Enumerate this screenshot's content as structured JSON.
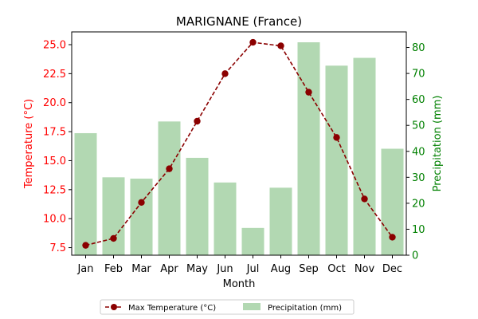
{
  "colors": {
    "temperature": "#8b0000",
    "left_axis": "#ff0000",
    "precipitation_bar": "#b2d8b2",
    "right_axis": "#008000"
  },
  "chart_data": {
    "type": "bar",
    "title": "MARIGNANE (France)",
    "xlabel": "Month",
    "ylabel_left": "Temperature (°C)",
    "ylabel_right": "Precipitation (mm)",
    "categories": [
      "Jan",
      "Feb",
      "Mar",
      "Apr",
      "May",
      "Jun",
      "Jul",
      "Aug",
      "Sep",
      "Oct",
      "Nov",
      "Dec"
    ],
    "ylim_left": [
      6.85,
      26.1
    ],
    "yticks_left": [
      "7.5",
      "10.0",
      "12.5",
      "15.0",
      "17.5",
      "20.0",
      "22.5",
      "25.0"
    ],
    "ylim_right": [
      0,
      86
    ],
    "yticks_right": [
      "0",
      "10",
      "20",
      "30",
      "40",
      "50",
      "60",
      "70",
      "80"
    ],
    "series": [
      {
        "name": "Max Temperature (°C)",
        "type": "line",
        "axis": "left",
        "style": "dashed with circle markers",
        "values": [
          7.7,
          8.3,
          11.4,
          14.3,
          18.4,
          22.5,
          25.2,
          24.9,
          20.9,
          17.0,
          11.7,
          8.4
        ]
      },
      {
        "name": "Precipitation (mm)",
        "type": "bar",
        "axis": "right",
        "values": [
          47,
          30,
          29.5,
          51.5,
          37.5,
          28,
          10.5,
          26,
          82,
          73,
          76,
          41
        ]
      }
    ],
    "legend": {
      "placement": "bottom-center, below the chart",
      "columns": 2
    },
    "grid": false
  }
}
